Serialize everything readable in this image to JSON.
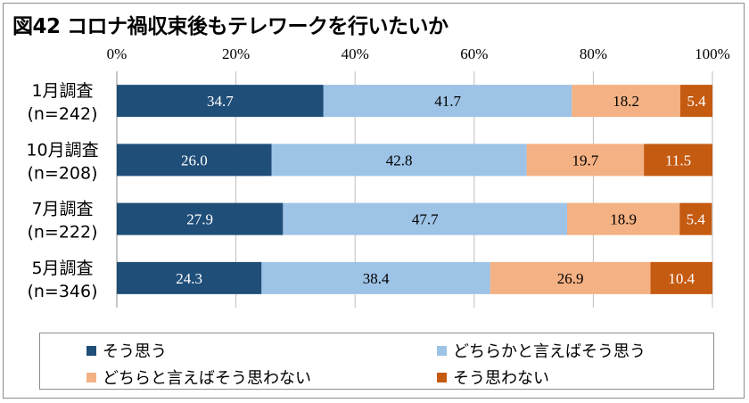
{
  "title": "図42 コロナ禍収束後もテレワークを行いたいか",
  "chart_data": {
    "type": "bar",
    "orientation": "horizontal",
    "stacked": true,
    "x_ticks": [
      "0%",
      "20%",
      "40%",
      "60%",
      "80%",
      "100%"
    ],
    "xlim": [
      0,
      100
    ],
    "categories": [
      [
        "1月調査",
        "(n=242)"
      ],
      [
        "10月調査",
        "(n=208)"
      ],
      [
        "7月調査",
        "(n=222)"
      ],
      [
        "5月調査",
        "(n=346)"
      ]
    ],
    "series": [
      {
        "name": "そう思う",
        "color": "#1f4e79",
        "label_color": "#ffffff",
        "values": [
          34.7,
          26.0,
          27.9,
          24.3
        ]
      },
      {
        "name": "どちらかと言えばそう思う",
        "color": "#9dc3e6",
        "label_color": "#000000",
        "values": [
          41.7,
          42.8,
          47.7,
          38.4
        ]
      },
      {
        "name": "どちらと言えばそう思わない",
        "color": "#f4b183",
        "label_color": "#000000",
        "values": [
          18.2,
          19.7,
          18.9,
          26.9
        ]
      },
      {
        "name": "そう思わない",
        "color": "#c55a11",
        "label_color": "#ffffff",
        "values": [
          5.4,
          11.5,
          5.4,
          10.4
        ]
      }
    ],
    "legend_position": "bottom",
    "grid": true
  }
}
